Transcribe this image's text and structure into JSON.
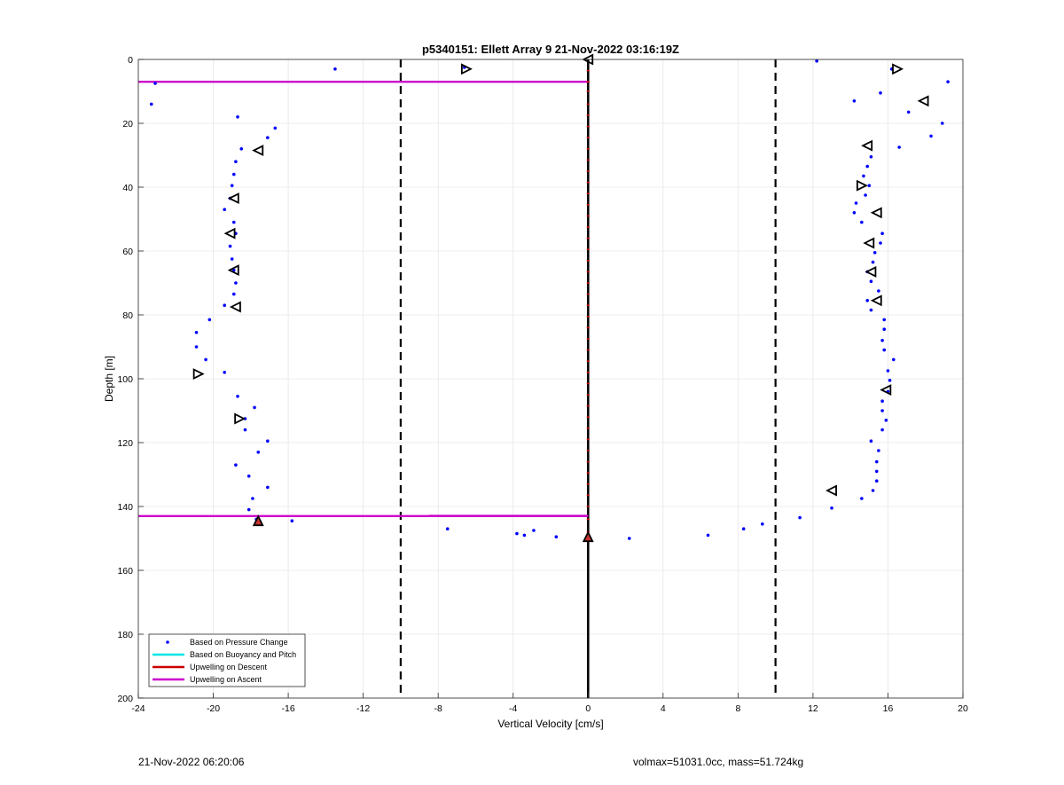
{
  "chart_data": {
    "type": "scatter",
    "title": "p5340151: Ellett Array 9 21-Nov-2022 03:16:19Z",
    "xlabel": "Vertical Velocity [cm/s]",
    "ylabel": "Depth [m]",
    "xlim": [
      -24,
      20
    ],
    "ylim": [
      0,
      200
    ],
    "y_reversed": true,
    "grid": true,
    "xticks": [
      -24,
      -20,
      -16,
      -12,
      -8,
      -4,
      0,
      4,
      8,
      12,
      16,
      20
    ],
    "yticks": [
      0,
      20,
      40,
      60,
      80,
      100,
      120,
      140,
      160,
      180,
      200
    ],
    "legend_position": "bottom-left",
    "legend": [
      {
        "label": "Based on Pressure Change",
        "color": "#0000ff",
        "kind": "marker"
      },
      {
        "label": "Based on Buoyancy and Pitch",
        "color": "#00e5e5",
        "kind": "line"
      },
      {
        "label": "Upwelling on Descent",
        "color": "#cc0000",
        "kind": "line"
      },
      {
        "label": "Upwelling on Ascent",
        "color": "#cc00cc",
        "kind": "line"
      }
    ],
    "dashed_reference_lines_x": [
      -10,
      10
    ],
    "zero_line_x": 0,
    "series": [
      {
        "name": "Based on Pressure Change",
        "color": "#0000ff",
        "points": [
          [
            -13.5,
            3
          ],
          [
            -6.6,
            2.5
          ],
          [
            -23.1,
            7.5
          ],
          [
            -23.3,
            14
          ],
          [
            -18.7,
            18
          ],
          [
            -16.7,
            21.5
          ],
          [
            -17.1,
            24.5
          ],
          [
            -18.5,
            28
          ],
          [
            -18.8,
            32
          ],
          [
            -18.9,
            36
          ],
          [
            -19.0,
            39.5
          ],
          [
            -19.1,
            43.5
          ],
          [
            -19.4,
            47
          ],
          [
            -18.9,
            51
          ],
          [
            -18.8,
            54.5
          ],
          [
            -19.1,
            58.5
          ],
          [
            -19.0,
            62.5
          ],
          [
            -18.9,
            66
          ],
          [
            -18.8,
            70
          ],
          [
            -18.9,
            73.5
          ],
          [
            -19.4,
            77
          ],
          [
            -20.2,
            81.5
          ],
          [
            -20.9,
            85.5
          ],
          [
            -20.9,
            90
          ],
          [
            -20.4,
            94
          ],
          [
            -19.4,
            98
          ],
          [
            -18.7,
            105.5
          ],
          [
            -17.8,
            109
          ],
          [
            -18.3,
            112.5
          ],
          [
            -18.3,
            116
          ],
          [
            -17.1,
            119.5
          ],
          [
            -17.6,
            123
          ],
          [
            -18.8,
            127
          ],
          [
            -18.1,
            130.5
          ],
          [
            -17.1,
            134
          ],
          [
            -17.9,
            137.5
          ],
          [
            -18.1,
            141
          ],
          [
            -17.7,
            144
          ],
          [
            -15.8,
            144.5
          ],
          [
            -7.5,
            147
          ],
          [
            -3.8,
            148.5
          ],
          [
            -3.4,
            149
          ],
          [
            -2.9,
            147.5
          ],
          [
            -1.7,
            149.5
          ],
          [
            -0.1,
            150
          ],
          [
            2.2,
            150
          ],
          [
            6.4,
            149
          ],
          [
            8.3,
            147
          ],
          [
            9.3,
            145.5
          ],
          [
            11.3,
            143.5
          ],
          [
            13.0,
            140.5
          ],
          [
            14.6,
            137.5
          ],
          [
            15.2,
            135
          ],
          [
            15.4,
            132
          ],
          [
            15.4,
            129
          ],
          [
            15.4,
            126
          ],
          [
            15.5,
            122.5
          ],
          [
            15.1,
            119.5
          ],
          [
            15.7,
            116
          ],
          [
            15.9,
            113
          ],
          [
            15.7,
            110
          ],
          [
            15.7,
            107
          ],
          [
            16.0,
            104
          ],
          [
            16.1,
            100.5
          ],
          [
            16.0,
            97.5
          ],
          [
            16.3,
            94
          ],
          [
            15.8,
            91
          ],
          [
            15.7,
            88
          ],
          [
            15.8,
            84.5
          ],
          [
            15.8,
            81.5
          ],
          [
            15.1,
            78.5
          ],
          [
            14.9,
            75.5
          ],
          [
            15.5,
            72.5
          ],
          [
            15.1,
            69.5
          ],
          [
            14.9,
            66.5
          ],
          [
            15.2,
            63.5
          ],
          [
            15.3,
            60.5
          ],
          [
            15.6,
            57.5
          ],
          [
            15.7,
            54.5
          ],
          [
            14.6,
            51
          ],
          [
            14.2,
            48
          ],
          [
            14.3,
            45
          ],
          [
            14.8,
            42.5
          ],
          [
            15.0,
            39.5
          ],
          [
            14.7,
            36.5
          ],
          [
            14.9,
            33.5
          ],
          [
            15.1,
            30.5
          ],
          [
            16.6,
            27.5
          ],
          [
            18.3,
            24
          ],
          [
            18.9,
            20
          ],
          [
            17.1,
            16.5
          ],
          [
            14.2,
            13
          ],
          [
            15.6,
            10.5
          ],
          [
            19.2,
            7
          ],
          [
            16.2,
            3
          ],
          [
            12.2,
            0.5
          ]
        ]
      },
      {
        "name": "Upwelling on Descent",
        "color": "#cc0000",
        "points": [
          [
            0,
            3.5
          ],
          [
            0,
            7
          ],
          [
            0,
            10
          ],
          [
            0,
            14
          ],
          [
            0,
            17.5
          ],
          [
            0,
            21
          ],
          [
            0,
            24.5
          ],
          [
            0,
            28
          ],
          [
            0,
            31.5
          ],
          [
            0,
            35
          ],
          [
            0,
            38.5
          ],
          [
            0,
            42
          ],
          [
            0,
            45.5
          ],
          [
            0,
            49
          ],
          [
            0,
            52.5
          ],
          [
            0,
            56
          ],
          [
            0,
            59.5
          ],
          [
            0,
            63
          ],
          [
            0,
            66.5
          ],
          [
            0,
            70
          ],
          [
            0,
            73.5
          ],
          [
            0,
            77
          ],
          [
            0,
            80.5
          ],
          [
            0,
            84
          ],
          [
            0,
            87.5
          ],
          [
            0,
            91
          ],
          [
            0,
            94.5
          ],
          [
            0,
            98
          ],
          [
            0,
            101.5
          ],
          [
            0,
            105
          ],
          [
            0,
            108.5
          ],
          [
            0,
            112
          ],
          [
            0,
            115.5
          ],
          [
            0,
            119
          ],
          [
            0,
            122.5
          ],
          [
            0,
            126
          ],
          [
            0,
            129.5
          ],
          [
            0,
            133
          ],
          [
            0,
            136.5
          ],
          [
            0,
            140
          ],
          [
            0,
            144
          ],
          [
            0,
            148
          ]
        ]
      }
    ],
    "upwelling_ascent_segments": [
      {
        "x1": -24,
        "x2": 0,
        "y": 7
      },
      {
        "x1": -24,
        "x2": 0,
        "y": 143
      }
    ],
    "buoyancy_triangles": [
      {
        "x": 0,
        "y": 0,
        "dir": "left"
      },
      {
        "x": -6.5,
        "y": 3,
        "dir": "right"
      },
      {
        "x": -17.6,
        "y": 28.5,
        "dir": "left"
      },
      {
        "x": -18.9,
        "y": 43.5,
        "dir": "left"
      },
      {
        "x": -19.1,
        "y": 54.5,
        "dir": "left"
      },
      {
        "x": -18.9,
        "y": 66,
        "dir": "left"
      },
      {
        "x": -18.8,
        "y": 77.5,
        "dir": "left"
      },
      {
        "x": -20.8,
        "y": 98.5,
        "dir": "right"
      },
      {
        "x": -18.6,
        "y": 112.5,
        "dir": "right"
      },
      {
        "x": -17.6,
        "y": 144.5,
        "dir": "up"
      },
      {
        "x": 0,
        "y": 149.5,
        "dir": "up"
      },
      {
        "x": 13.0,
        "y": 135,
        "dir": "left"
      },
      {
        "x": 15.9,
        "y": 103.5,
        "dir": "left"
      },
      {
        "x": 15.4,
        "y": 75.5,
        "dir": "left"
      },
      {
        "x": 15.1,
        "y": 66.5,
        "dir": "left"
      },
      {
        "x": 15.0,
        "y": 57.5,
        "dir": "left"
      },
      {
        "x": 15.4,
        "y": 48,
        "dir": "left"
      },
      {
        "x": 14.6,
        "y": 39.5,
        "dir": "right"
      },
      {
        "x": 14.9,
        "y": 27,
        "dir": "left"
      },
      {
        "x": 17.9,
        "y": 13,
        "dir": "left"
      },
      {
        "x": 16.5,
        "y": 3,
        "dir": "right"
      }
    ]
  },
  "footer": {
    "left": "21-Nov-2022 06:20:06",
    "right": "volmax=51031.0cc, mass=51.724kg"
  }
}
